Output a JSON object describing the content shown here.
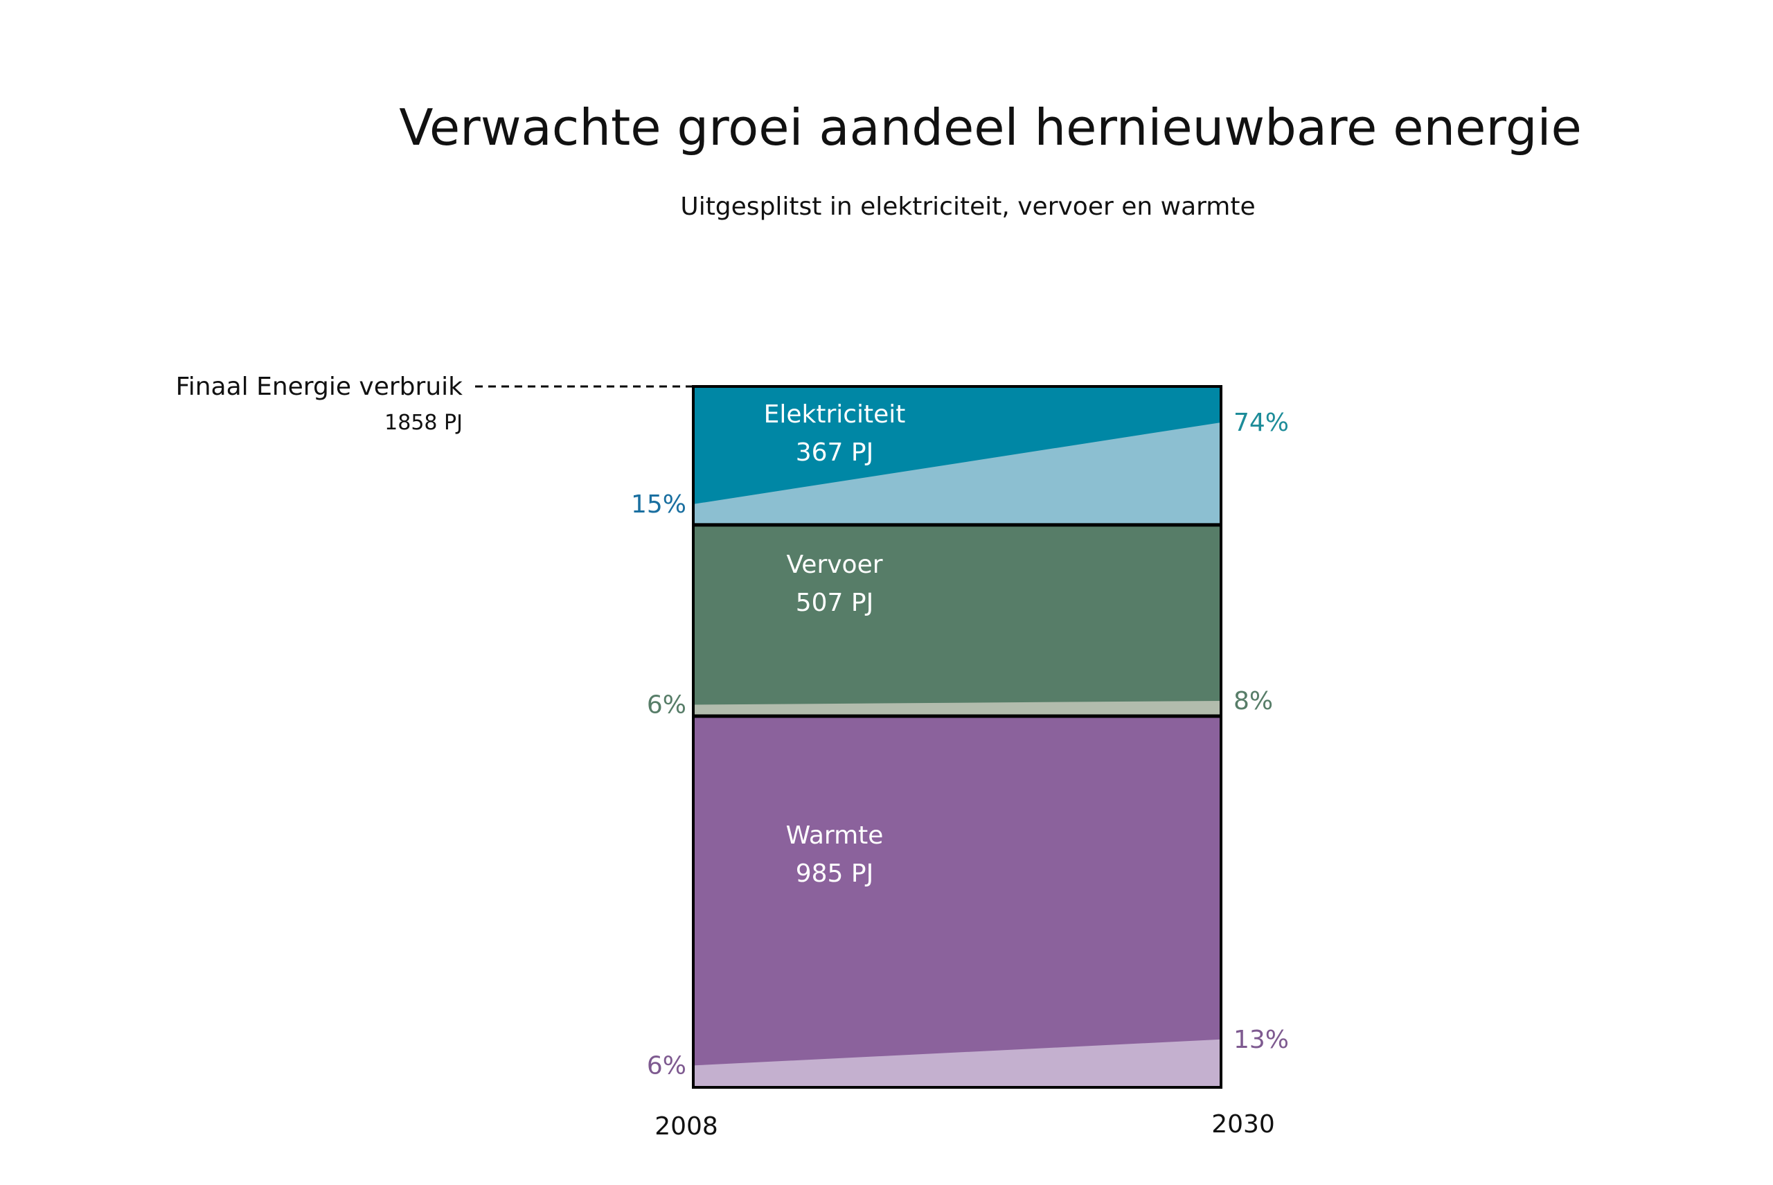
{
  "chart_data": {
    "type": "area",
    "title": "Verwachte groei aandeel hernieuwbare energie",
    "subtitle": "Uitgesplitst in elektriciteit, vervoer en warmte",
    "x": [
      "2008",
      "2030"
    ],
    "total": {
      "label": "Finaal Energie verbruik",
      "value_label": "1858 PJ",
      "value": 1858,
      "unit": "PJ"
    },
    "ylim": [
      0,
      1858
    ],
    "sectors": [
      {
        "name": "Elektriciteit",
        "value_label": "367 PJ",
        "value": 367,
        "share_start": 15,
        "share_end": 74,
        "start_label": "15%",
        "end_label": "74%",
        "dark_color": "#0087a5",
        "light_color": "#8cbfd1",
        "label_color_start": "#1a6fa0",
        "label_color_end": "#1d8c99"
      },
      {
        "name": "Vervoer",
        "value_label": "507 PJ",
        "value": 507,
        "share_start": 6,
        "share_end": 8,
        "start_label": "6%",
        "end_label": "8%",
        "dark_color": "#577d68",
        "light_color": "#b2bcad",
        "label_color_start": "#577d68",
        "label_color_end": "#577d68"
      },
      {
        "name": "Warmte",
        "value_label": "985 PJ",
        "value": 985,
        "share_start": 6,
        "share_end": 13,
        "start_label": "6%",
        "end_label": "13%",
        "dark_color": "#8b629c",
        "light_color": "#c4b0cf",
        "label_color_start": "#7e5a90",
        "label_color_end": "#7e5a90"
      }
    ]
  }
}
